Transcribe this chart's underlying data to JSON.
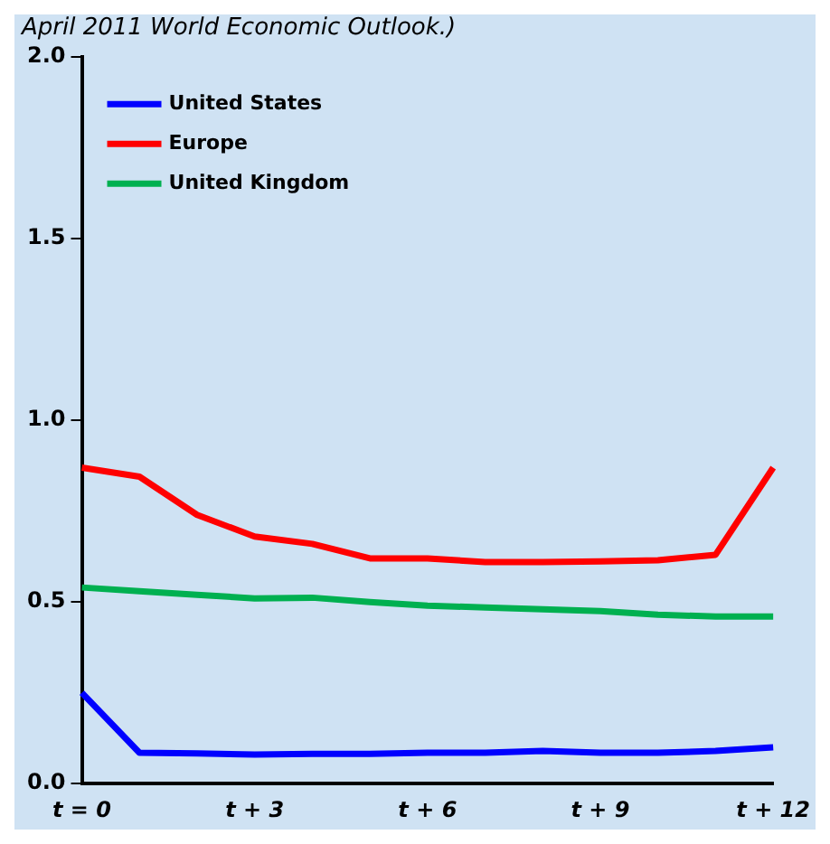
{
  "chart_data": {
    "type": "line",
    "subtitle": "April 2011 World Economic Outlook.)",
    "categories": [
      "t = 0",
      null,
      null,
      "t + 3",
      null,
      null,
      "t + 6",
      null,
      null,
      "t + 9",
      null,
      null,
      "t + 12"
    ],
    "series": [
      {
        "name": "United States",
        "color": "#0000ff",
        "values": [
          0.25,
          0.085,
          0.083,
          0.08,
          0.082,
          0.082,
          0.085,
          0.085,
          0.09,
          0.085,
          0.085,
          0.09,
          0.1
        ]
      },
      {
        "name": "Europe",
        "color": "#ff0000",
        "values": [
          0.87,
          0.845,
          0.74,
          0.68,
          0.66,
          0.62,
          0.62,
          0.61,
          0.61,
          0.612,
          0.615,
          0.63,
          0.87
        ]
      },
      {
        "name": "United Kingdom",
        "color": "#00b050",
        "values": [
          0.54,
          0.53,
          0.52,
          0.51,
          0.512,
          0.5,
          0.49,
          0.485,
          0.48,
          0.475,
          0.465,
          0.46,
          0.46
        ]
      }
    ],
    "ylim": [
      0,
      2
    ],
    "yticks": [
      {
        "value": 0,
        "label": "0.0"
      },
      {
        "value": 0.5,
        "label": "0.5"
      },
      {
        "value": 1,
        "label": "1.0"
      },
      {
        "value": 1.5,
        "label": "1.5"
      },
      {
        "value": 2,
        "label": "2.0"
      }
    ],
    "grid": false,
    "legend": "top left",
    "marker": "none",
    "line_style": "solid"
  }
}
